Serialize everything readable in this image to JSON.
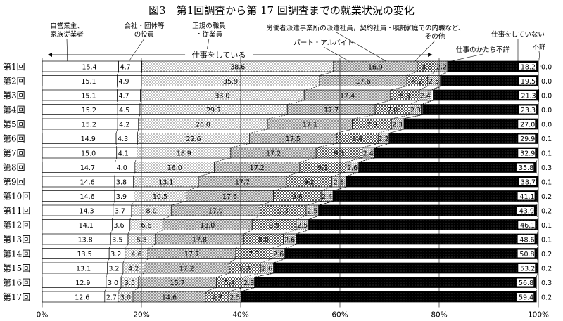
{
  "chart_data": {
    "type": "bar",
    "orientation": "horizontal",
    "stacked": true,
    "title": "図3　第1回調査から第 17 回調査までの就業状況の変化",
    "categories": [
      "第1回",
      "第2回",
      "第3回",
      "第4回",
      "第5回",
      "第6回",
      "第7回",
      "第8回",
      "第9回",
      "第10回",
      "第11回",
      "第12回",
      "第13回",
      "第14回",
      "第15回",
      "第16回",
      "第17回"
    ],
    "x_ticks": [
      "0%",
      "20%",
      "40%",
      "60%",
      "80%",
      "100%"
    ],
    "xlim": [
      0,
      100
    ],
    "grid": false,
    "bracket_label": "仕事をしている",
    "series": [
      {
        "name": "自営業主、\n家族従業者",
        "pattern": "white",
        "values": [
          15.4,
          15.1,
          15.1,
          15.2,
          15.2,
          14.9,
          15.0,
          14.7,
          14.6,
          14.6,
          14.3,
          14.1,
          13.8,
          13.5,
          13.1,
          12.9,
          12.6
        ]
      },
      {
        "name": "会社・団体等\nの役員",
        "pattern": "white",
        "values": [
          4.7,
          4.9,
          4.7,
          4.5,
          4.2,
          4.3,
          4.1,
          4.0,
          3.8,
          3.9,
          3.7,
          3.6,
          3.5,
          3.2,
          3.2,
          3.0,
          2.7
        ]
      },
      {
        "name": "正規の職員\n・従業員",
        "pattern": "dots",
        "values": [
          38.6,
          35.9,
          33.0,
          29.7,
          26.0,
          22.6,
          18.9,
          16.0,
          13.1,
          10.5,
          8.0,
          6.6,
          5.5,
          4.6,
          4.2,
          3.5,
          3.0
        ]
      },
      {
        "name": "パート・アルバイト",
        "pattern": "crosshatch",
        "values": [
          16.9,
          17.6,
          17.4,
          17.7,
          17.1,
          17.5,
          17.2,
          17.2,
          17.7,
          17.6,
          17.9,
          18.0,
          17.8,
          17.7,
          17.2,
          15.7,
          14.6
        ]
      },
      {
        "name": "労働者派遣事業所の派遣社員，契約社員・嘱託",
        "pattern": "checker",
        "values": [
          3.8,
          4.2,
          5.8,
          7.0,
          7.9,
          8.4,
          9.3,
          9.3,
          9.2,
          9.6,
          9.3,
          8.9,
          8.0,
          7.3,
          6.3,
          5.4,
          4.7
        ]
      },
      {
        "name": "家庭での内職など、\nその他",
        "pattern": "checker-small",
        "values": [
          2.2,
          2.5,
          2.4,
          2.3,
          2.3,
          2.2,
          2.4,
          2.6,
          2.8,
          2.4,
          2.5,
          2.5,
          2.6,
          2.6,
          2.6,
          2.3,
          2.5
        ]
      },
      {
        "name": "仕事のかたち不詳",
        "pattern": "white",
        "values": [
          0.2,
          0.3,
          0.4,
          0.3,
          0.2,
          0.1,
          0.1,
          0.0,
          0.1,
          0.1,
          0.1,
          0.1,
          0.0,
          0.1,
          0.1,
          0.0,
          0.1
        ]
      },
      {
        "name": "仕事をしていない",
        "pattern": "black-dots",
        "values": [
          18.2,
          19.5,
          21.3,
          23.3,
          27.0,
          29.9,
          32.9,
          35.8,
          38.7,
          41.1,
          43.9,
          46.1,
          48.6,
          50.8,
          53.2,
          56.8,
          59.4
        ]
      },
      {
        "name": "不詳",
        "pattern": "white",
        "values": [
          0.0,
          0.0,
          0.0,
          0.0,
          0.0,
          0.1,
          0.1,
          0.3,
          0.1,
          0.2,
          0.2,
          0.1,
          0.1,
          0.2,
          0.2,
          0.3,
          0.2
        ]
      }
    ]
  }
}
